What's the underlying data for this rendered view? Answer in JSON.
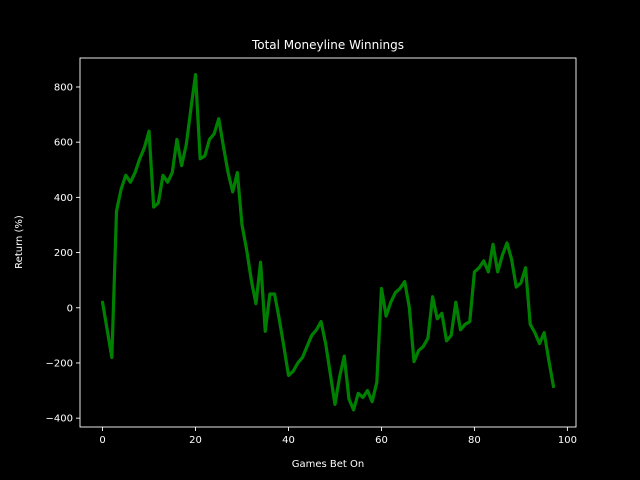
{
  "chart_data": {
    "type": "line",
    "title": "Total Moneyline Winnings",
    "xlabel": "Games Bet On",
    "ylabel": "Return (%)",
    "xlim": [
      -4.85,
      101.85
    ],
    "ylim": [
      -432,
      905
    ],
    "xticks": [
      0,
      20,
      40,
      60,
      80,
      100
    ],
    "yticks": [
      -400,
      -200,
      0,
      200,
      400,
      600,
      800
    ],
    "grid": false,
    "legend": "none",
    "colors": {
      "background": "#000000",
      "axes": "#ffffff",
      "line": "#008000"
    },
    "series": [
      {
        "values": [
          20,
          -80,
          -180,
          350,
          430,
          480,
          455,
          490,
          540,
          580,
          640,
          365,
          380,
          480,
          455,
          490,
          610,
          515,
          590,
          720,
          845,
          540,
          550,
          610,
          630,
          685,
          585,
          490,
          420,
          490,
          300,
          210,
          100,
          15,
          165,
          -85,
          50,
          50,
          -40,
          -140,
          -245,
          -230,
          -200,
          -180,
          -140,
          -100,
          -80,
          -50,
          -130,
          -240,
          -350,
          -250,
          -175,
          -330,
          -370,
          -310,
          -325,
          -300,
          -340,
          -270,
          70,
          -30,
          20,
          55,
          70,
          95,
          0,
          -195,
          -155,
          -140,
          -110,
          40,
          -40,
          -20,
          -120,
          -100,
          20,
          -80,
          -60,
          -50,
          130,
          145,
          170,
          130,
          230,
          130,
          190,
          235,
          175,
          75,
          90,
          145,
          -60,
          -90,
          -130,
          -90,
          -190,
          -285
        ]
      }
    ]
  }
}
